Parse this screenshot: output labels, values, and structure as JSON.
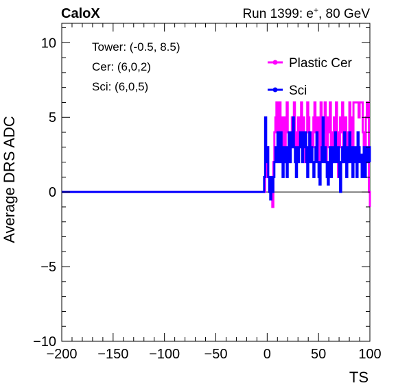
{
  "header": {
    "experiment": "CaloX",
    "run_prefix": "Run 1399: e",
    "run_sup": "+",
    "run_suffix": ", 80 GeV"
  },
  "info": {
    "tower": "Tower: (-0.5, 8.5)",
    "cer": "Cer: (6,0,2)",
    "sci": "Sci: (6,0,5)"
  },
  "colors": {
    "cer": "#ff00ff",
    "sci": "#0000ff",
    "axis": "#000000",
    "zero_line": "#000000"
  },
  "chart_data": {
    "type": "line",
    "title": "",
    "xlabel": "TS",
    "ylabel": "Average DRS ADC",
    "xlim": [
      -200,
      100
    ],
    "ylim": [
      -10,
      11.3
    ],
    "xticks": [
      -200,
      -150,
      -100,
      -50,
      0,
      50,
      100
    ],
    "yticks": [
      -10,
      -5,
      0,
      5,
      10
    ],
    "xtick_labels": [
      "−200",
      "−150",
      "−100",
      "−50",
      "0",
      "50",
      "100"
    ],
    "ytick_labels": [
      "−10",
      "−5",
      "0",
      "5",
      "10"
    ],
    "grid": false,
    "legend_position": "top-right",
    "series": [
      {
        "name": "Plastic Cer",
        "color_key": "cer",
        "x": [
          -200,
          -6,
          -5,
          -4,
          -3,
          -2,
          -1,
          0,
          1,
          2,
          3,
          4,
          5,
          6,
          7,
          8,
          9,
          10,
          11,
          12,
          13,
          14,
          15,
          16,
          17,
          18,
          19,
          20,
          21,
          22,
          23,
          24,
          25,
          26,
          27,
          28,
          29,
          30,
          31,
          32,
          33,
          34,
          35,
          36,
          37,
          38,
          39,
          40,
          41,
          42,
          43,
          44,
          45,
          46,
          47,
          48,
          49,
          50,
          51,
          52,
          53,
          54,
          55,
          56,
          57,
          58,
          59,
          60,
          61,
          62,
          63,
          64,
          65,
          66,
          67,
          68,
          69,
          70,
          71,
          72,
          73,
          74,
          75,
          76,
          77,
          78,
          79,
          80,
          81,
          82,
          83,
          84,
          85,
          86,
          87,
          88,
          89,
          90,
          91,
          92,
          93,
          94,
          95,
          96,
          97,
          98,
          99,
          100
        ],
        "y": [
          0,
          0,
          0,
          0,
          0,
          1,
          2,
          3,
          1,
          0,
          1,
          0,
          -1,
          2,
          4,
          5,
          6,
          4,
          5,
          6,
          3,
          4,
          5,
          2,
          3,
          5,
          6,
          4,
          2,
          3,
          4,
          5,
          3,
          6,
          4,
          2,
          3,
          5,
          4,
          3,
          6,
          4,
          5,
          3,
          2,
          4,
          6,
          5,
          3,
          4,
          2,
          3,
          5,
          6,
          4,
          3,
          5,
          2,
          4,
          6,
          3,
          5,
          4,
          6,
          2,
          3,
          5,
          4,
          6,
          3,
          2,
          4,
          5,
          3,
          6,
          4,
          1,
          3,
          5,
          4,
          6,
          2,
          3,
          5,
          4,
          2,
          3,
          6,
          5,
          4,
          2,
          6,
          6,
          6,
          6,
          6,
          5,
          6,
          6,
          6,
          4,
          2,
          3,
          5,
          6,
          6,
          0,
          -1
        ]
      },
      {
        "name": "Sci",
        "color_key": "sci",
        "x": [
          -200,
          -4,
          -3,
          -2,
          -1,
          0,
          1,
          2,
          3,
          4,
          5,
          6,
          7,
          8,
          9,
          10,
          11,
          12,
          13,
          14,
          15,
          16,
          17,
          18,
          19,
          20,
          21,
          22,
          23,
          24,
          25,
          26,
          27,
          28,
          29,
          30,
          31,
          32,
          33,
          34,
          35,
          36,
          37,
          38,
          39,
          40,
          41,
          42,
          43,
          44,
          45,
          46,
          47,
          48,
          49,
          50,
          51,
          52,
          53,
          54,
          55,
          56,
          57,
          58,
          59,
          60,
          61,
          62,
          63,
          64,
          65,
          66,
          67,
          68,
          69,
          70,
          71,
          72,
          73,
          74,
          75,
          76,
          77,
          78,
          79,
          80,
          81,
          82,
          83,
          84,
          85,
          86,
          87,
          88,
          89,
          90,
          91,
          92,
          93,
          94,
          95,
          96,
          97,
          98,
          99,
          100
        ],
        "y": [
          0,
          0,
          1,
          5,
          2,
          3,
          1,
          0,
          -0.5,
          1,
          0,
          1,
          2,
          3,
          2,
          4,
          3,
          2,
          4,
          3,
          1,
          2,
          3,
          2,
          1,
          3,
          4,
          2,
          3,
          4,
          5,
          3,
          2,
          1,
          3,
          2,
          3,
          4,
          3,
          2,
          4,
          3,
          4,
          2,
          1,
          3,
          4,
          2,
          3,
          2,
          1,
          2,
          3,
          4,
          2,
          1,
          0.5,
          2,
          3,
          5,
          2,
          3,
          2,
          1,
          0.5,
          2,
          3,
          1,
          2,
          3,
          2,
          4,
          3,
          2,
          3,
          1,
          0,
          2,
          3,
          2,
          4,
          3,
          1,
          2,
          3,
          4,
          2,
          3,
          1,
          2,
          3,
          2,
          1,
          4,
          3,
          2,
          2.5,
          1,
          2,
          3,
          1,
          2,
          3,
          2,
          3,
          2
        ]
      }
    ]
  }
}
